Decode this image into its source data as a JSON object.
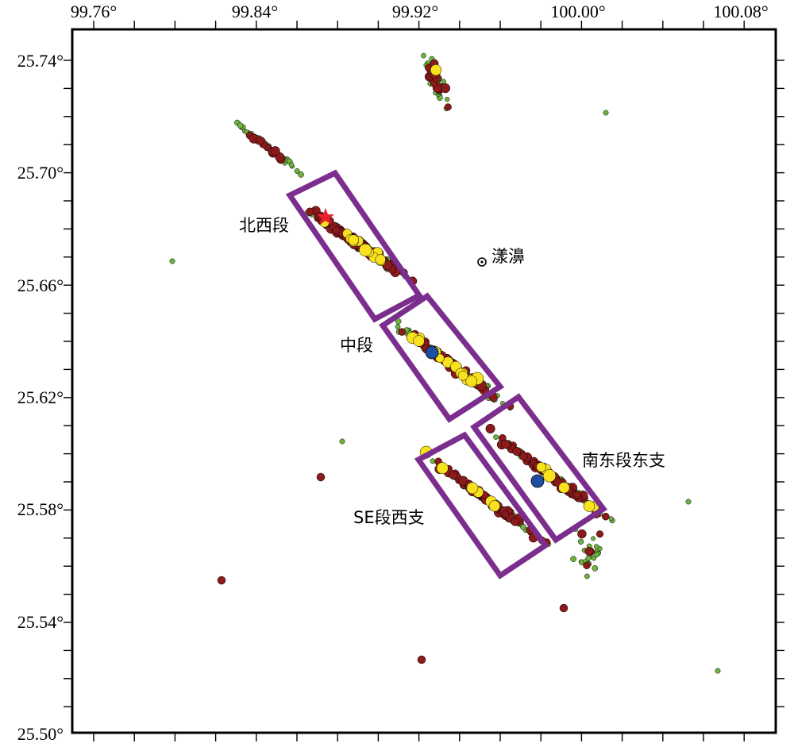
{
  "map": {
    "x_ticks": [
      "99.76°",
      "99.84°",
      "99.92°",
      "100.00°",
      "100.08°"
    ],
    "y_ticks": [
      "25.74°",
      "25.70°",
      "25.66°",
      "25.62°",
      "25.58°",
      "25.54°",
      "25.50°"
    ],
    "city": {
      "name": "漾濞",
      "lon": 99.958,
      "lat": 25.668
    },
    "segments": [
      {
        "id": "nw",
        "label": "北西段"
      },
      {
        "id": "mid",
        "label": "中段"
      },
      {
        "id": "se-west",
        "label": "SE段西支"
      },
      {
        "id": "se-east",
        "label": "南东段东支"
      }
    ],
    "colors": {
      "frame": "#000000",
      "box": "#7b2e8e",
      "small": "#6db33f",
      "medium": "#8b1a1a",
      "large": "#f8e11e",
      "main": "#1f4ea0",
      "star": "#e8202a"
    }
  }
}
